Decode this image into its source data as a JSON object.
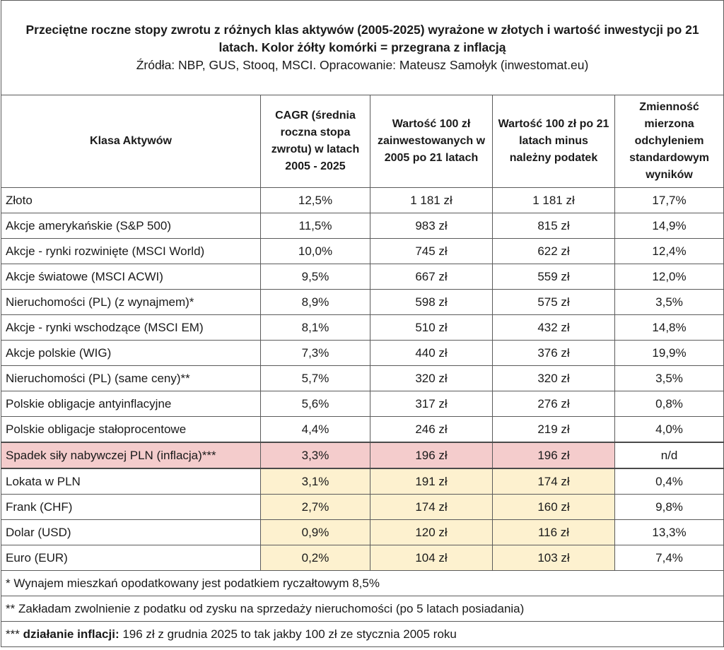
{
  "title": {
    "bold": "Przeciętne roczne stopy zwrotu z różnych klas aktywów (2005-2025) wyrażone w złotych i wartość inwestycji po 21 latach. Kolor żółty komórki = przegrana z inflacją",
    "source": "Źródła: NBP, GUS, Stooq, MSCI. Opracowanie: Mateusz Samołyk (inwestomat.eu)"
  },
  "headers": [
    "Klasa Aktywów",
    "CAGR (średnia roczna stopa zwrotu) w latach 2005 - 2025",
    "Wartość 100 zł zainwestowanych w 2005 po 21 latach",
    "Wartość 100 zł po 21 latach minus należny podatek",
    "Zmienność mierzona odchyleniem standardowym wyników"
  ],
  "rows": [
    {
      "name": "Złoto",
      "cagr": "12,5%",
      "value": "1 181 zł",
      "after_tax": "1 181 zł",
      "volatility": "17,7%"
    },
    {
      "name": "Akcje amerykańskie (S&P 500)",
      "cagr": "11,5%",
      "value": "983 zł",
      "after_tax": "815 zł",
      "volatility": "14,9%"
    },
    {
      "name": "Akcje - rynki rozwinięte (MSCI World)",
      "cagr": "10,0%",
      "value": "745 zł",
      "after_tax": "622 zł",
      "volatility": "12,4%"
    },
    {
      "name": "Akcje światowe (MSCI ACWI)",
      "cagr": "9,5%",
      "value": "667 zł",
      "after_tax": "559 zł",
      "volatility": "12,0%"
    },
    {
      "name": "Nieruchomości (PL) (z wynajmem)*",
      "cagr": "8,9%",
      "value": "598 zł",
      "after_tax": "575 zł",
      "volatility": "3,5%"
    },
    {
      "name": "Akcje - rynki wschodzące (MSCI EM)",
      "cagr": "8,1%",
      "value": "510 zł",
      "after_tax": "432 zł",
      "volatility": "14,8%"
    },
    {
      "name": "Akcje polskie (WIG)",
      "cagr": "7,3%",
      "value": "440 zł",
      "after_tax": "376 zł",
      "volatility": "19,9%"
    },
    {
      "name": "Nieruchomości (PL) (same ceny)**",
      "cagr": "5,7%",
      "value": "320 zł",
      "after_tax": "320 zł",
      "volatility": "3,5%"
    },
    {
      "name": "Polskie obligacje antyinflacyjne",
      "cagr": "5,6%",
      "value": "317 zł",
      "after_tax": "276 zł",
      "volatility": "0,8%"
    },
    {
      "name": "Polskie obligacje stałoprocentowe",
      "cagr": "4,4%",
      "value": "246 zł",
      "after_tax": "219 zł",
      "volatility": "4,0%"
    }
  ],
  "inflation_row": {
    "name": "Spadek siły nabywczej PLN (inflacja)***",
    "cagr": "3,3%",
    "value": "196 zł",
    "after_tax": "196 zł",
    "volatility": "n/d"
  },
  "losing_rows": [
    {
      "name": "Lokata w PLN",
      "cagr": "3,1%",
      "value": "191 zł",
      "after_tax": "174 zł",
      "volatility": "0,4%"
    },
    {
      "name": "Frank (CHF)",
      "cagr": "2,7%",
      "value": "174 zł",
      "after_tax": "160 zł",
      "volatility": "9,8%"
    },
    {
      "name": "Dolar (USD)",
      "cagr": "0,9%",
      "value": "120 zł",
      "after_tax": "116 zł",
      "volatility": "13,3%"
    },
    {
      "name": "Euro (EUR)",
      "cagr": "0,2%",
      "value": "104 zł",
      "after_tax": "103 zł",
      "volatility": "7,4%"
    }
  ],
  "notes": {
    "note1": "* Wynajem mieszkań opodatkowany jest podatkiem ryczałtowym 8,5%",
    "note2": "** Zakładam zwolnienie z podatku od zysku na sprzedaży nieruchomości (po 5 latach posiadania)",
    "note3_prefix": "*** ",
    "note3_bold": "działanie inflacji:",
    "note3_rest": " 196 zł z grudnia 2025 to tak jakby 100 zł ze stycznia 2005 roku"
  },
  "colors": {
    "inflation_highlight": "#f4cccc",
    "lost_to_inflation": "#fdf1cf",
    "border": "#5b5b5b"
  }
}
